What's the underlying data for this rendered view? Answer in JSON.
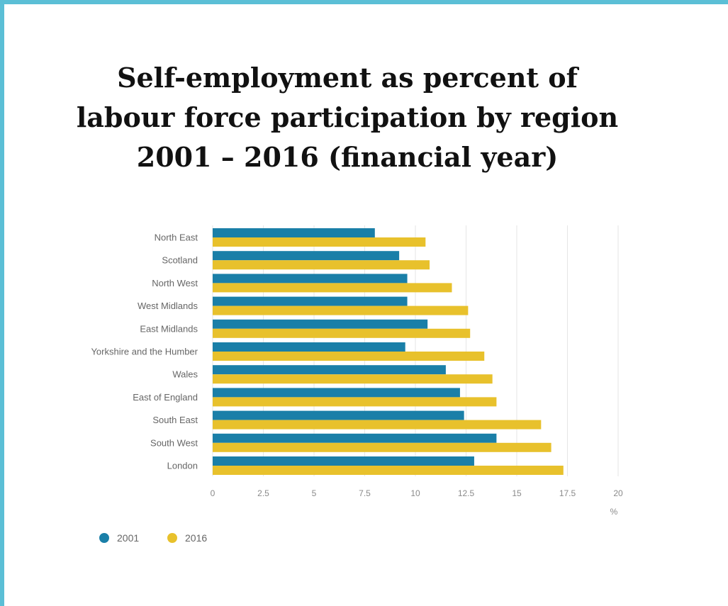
{
  "title": "Self-employment as percent of labour force participation by region 2001 – 2016 (financial year)",
  "chart_data": {
    "type": "bar",
    "orientation": "horizontal",
    "categories": [
      "North East",
      "Scotland",
      "North West",
      "West Midlands",
      "East Midlands",
      "Yorkshire and the Humber",
      "Wales",
      "East of England",
      "South East",
      "South West",
      "London"
    ],
    "series": [
      {
        "name": "2001",
        "color": "#1a7fa8",
        "values": [
          8.0,
          9.2,
          9.6,
          9.6,
          10.6,
          9.5,
          11.5,
          12.2,
          12.4,
          14.0,
          12.9
        ]
      },
      {
        "name": "2016",
        "color": "#e8c12c",
        "values": [
          10.5,
          10.7,
          11.8,
          12.6,
          12.7,
          13.4,
          13.8,
          14.0,
          16.2,
          16.7,
          17.3
        ]
      }
    ],
    "xlim": [
      0,
      20
    ],
    "xticks": [
      "0",
      "2.5",
      "5",
      "7.5",
      "10",
      "12.5",
      "15",
      "17.5",
      "20"
    ],
    "unit": "%",
    "grid": "vertical",
    "legend": "bottom-left"
  }
}
